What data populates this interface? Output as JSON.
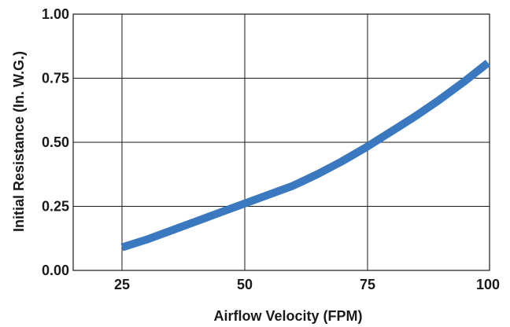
{
  "chart_data": {
    "type": "line",
    "xlabel": "Airflow Velocity (FPM)",
    "ylabel": "Initial Resistance (In. W.G.)",
    "xlim": [
      15,
      100
    ],
    "ylim": [
      0,
      1
    ],
    "x_ticks": [
      "25",
      "50",
      "75",
      "100"
    ],
    "y_ticks": [
      "0.00",
      "0.25",
      "0.50",
      "0.75",
      "1.00"
    ],
    "grid": true,
    "series": [
      {
        "color": "#3a78bf",
        "points": [
          [
            25,
            0.09
          ],
          [
            30,
            0.12
          ],
          [
            35,
            0.155
          ],
          [
            40,
            0.19
          ],
          [
            45,
            0.225
          ],
          [
            50,
            0.26
          ],
          [
            55,
            0.295
          ],
          [
            60,
            0.33
          ],
          [
            65,
            0.375
          ],
          [
            70,
            0.425
          ],
          [
            75,
            0.48
          ],
          [
            80,
            0.54
          ],
          [
            85,
            0.6
          ],
          [
            90,
            0.665
          ],
          [
            95,
            0.735
          ],
          [
            100,
            0.81
          ]
        ]
      }
    ]
  }
}
